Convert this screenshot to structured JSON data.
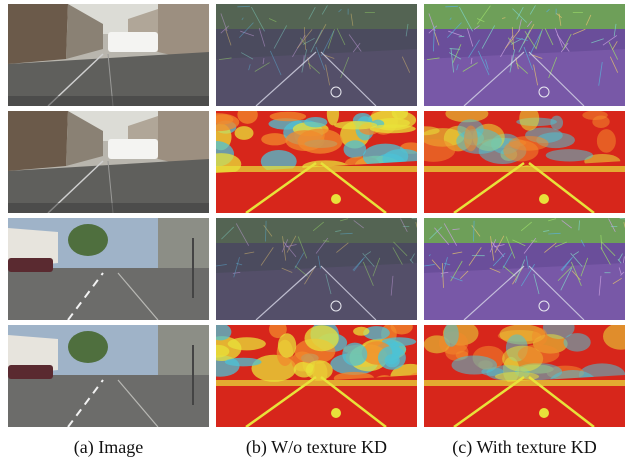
{
  "captions": [
    "(a) Image",
    "(b) W/o texture KD",
    "(c) With texture KD"
  ],
  "rows": [
    {
      "scene": "street-a",
      "kind": "texture"
    },
    {
      "scene": "street-a",
      "kind": "heat"
    },
    {
      "scene": "street-b",
      "kind": "texture"
    },
    {
      "scene": "street-b",
      "kind": "heat"
    }
  ],
  "colors": {
    "heat_red": "#d7261b",
    "heat_orange": "#f28a2c",
    "heat_yellow": "#e8e23a",
    "heat_cyan": "#4cc2d6",
    "texture_purple": "#7a5aa8",
    "texture_green": "#6fae4e"
  }
}
